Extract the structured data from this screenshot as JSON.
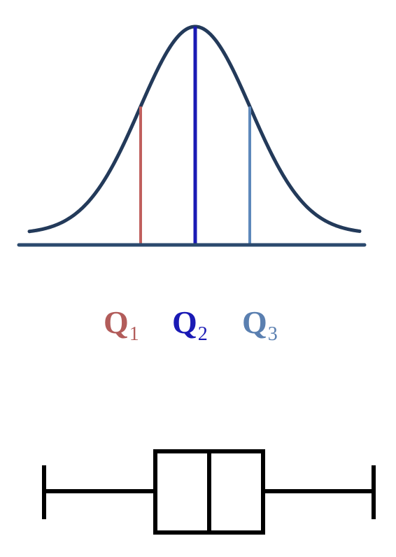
{
  "quartile_labels": [
    {
      "letter": "Q",
      "sub": "1",
      "color": "#b25c5a"
    },
    {
      "letter": "Q",
      "sub": "2",
      "color": "#1a1ab5"
    },
    {
      "letter": "Q",
      "sub": "3",
      "color": "#5a7fb0"
    }
  ],
  "colors": {
    "curve": "#233a5a",
    "baseline": "#2b4a6e",
    "q1_line": "#c0605e",
    "q2_line": "#1a1ab5",
    "q3_line": "#5d88bb",
    "boxplot": "#000000"
  }
}
